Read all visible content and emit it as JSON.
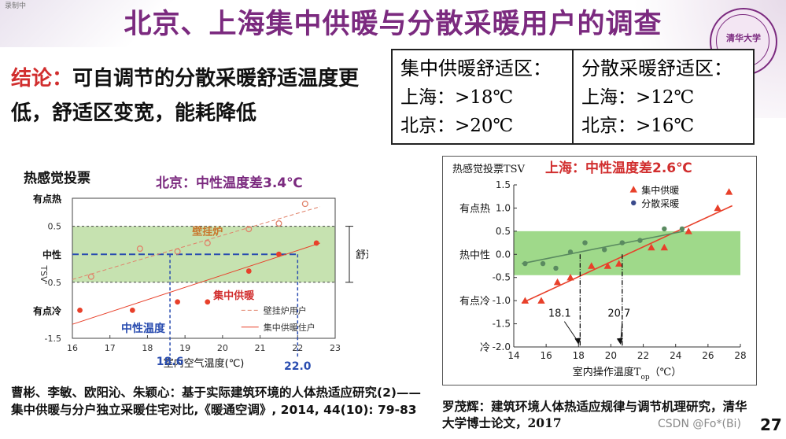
{
  "header": {
    "corner_label": "录制中",
    "title": "北京、上海集中供暖与分散采暖用户的调查",
    "seal_text": "清华大学"
  },
  "conclusion": {
    "lead": "结论：",
    "text": "可自调节的分散采暖舒适温度更低，舒适区变宽，能耗降低"
  },
  "comfort_zones": [
    {
      "heading": "集中供暖舒适区：",
      "rows": [
        "上海：>18℃",
        "北京：>20℃"
      ]
    },
    {
      "heading": "分散采暖舒适区：",
      "rows": [
        "上海：>12℃",
        "北京：>16℃"
      ]
    }
  ],
  "chart_data": [
    {
      "type": "scatter",
      "title": "北京：中性温度差3.4℃",
      "panel_label": "热感觉投票",
      "xlabel": "室内空气温度(℃)",
      "ylabel": "TSV",
      "xlim": [
        16,
        23
      ],
      "ylim": [
        -1.5,
        1.0
      ],
      "x_ticks": [
        "16",
        "17",
        "18",
        "19",
        "20",
        "21",
        "22",
        "23"
      ],
      "y_ticks": [
        {
          "v": 0.5,
          "label": "0.5"
        },
        {
          "v": -0.5,
          "label": "-0.5"
        },
        {
          "v": -1.5,
          "label": "-1.5"
        }
      ],
      "y_text_ticks": [
        {
          "v": 1.0,
          "label": "有点热"
        },
        {
          "v": 0.0,
          "label": "中性"
        },
        {
          "v": -1.0,
          "label": "有点冷"
        }
      ],
      "comfort_band": [
        -0.5,
        0.5
      ],
      "comfort_label": "舒适区",
      "neutral_markers": [
        {
          "x": 18.6,
          "label": "18.6",
          "name": "中性温度"
        },
        {
          "x": 22.0,
          "label": "22.0"
        }
      ],
      "series": [
        {
          "name": "壁挂炉用户",
          "inline_label": "壁挂炉",
          "marker": "open-circle",
          "color": "#e0826a",
          "points": [
            [
              16.5,
              -0.4
            ],
            [
              17.8,
              0.1
            ],
            [
              18.8,
              0.05
            ],
            [
              19.6,
              0.2
            ],
            [
              20.7,
              0.45
            ],
            [
              21.5,
              0.55
            ],
            [
              22.2,
              0.9
            ]
          ],
          "fit": [
            [
              16.0,
              -0.45
            ],
            [
              22.6,
              0.85
            ]
          ]
        },
        {
          "name": "集中供暖住户",
          "inline_label": "集中供暖",
          "marker": "filled-circle",
          "color": "#e8402a",
          "points": [
            [
              16.2,
              -1.0
            ],
            [
              17.6,
              -1.0
            ],
            [
              18.8,
              -0.85
            ],
            [
              19.6,
              -0.85
            ],
            [
              20.7,
              -0.3
            ],
            [
              21.5,
              0.0
            ],
            [
              22.5,
              0.2
            ]
          ],
          "fit": [
            [
              16.0,
              -1.25
            ],
            [
              22.6,
              0.2
            ]
          ]
        }
      ]
    },
    {
      "type": "scatter",
      "title": "上海：中性温度差2.6℃",
      "panel_label": "热感觉投票TSV",
      "xlabel": "室内操作温度T",
      "xlabel_sub": "op",
      "xlabel_unit": "（℃）",
      "xlim": [
        14,
        28
      ],
      "ylim": [
        -2.0,
        1.5
      ],
      "x_ticks": [
        "14",
        "16",
        "18",
        "20",
        "22",
        "24",
        "26",
        "28"
      ],
      "y_ticks": [
        {
          "v": 1.5,
          "label": "1.5"
        },
        {
          "v": 1.0,
          "label": "1.0"
        },
        {
          "v": 0.5,
          "label": "0.5"
        },
        {
          "v": 0.0,
          "label": "0.0"
        },
        {
          "v": -0.5,
          "label": "-0.5"
        },
        {
          "v": -1.0,
          "label": "-1.0"
        },
        {
          "v": -1.5,
          "label": "-1.5"
        },
        {
          "v": -2.0,
          "label": "-2.0"
        }
      ],
      "y_text_ticks": [
        {
          "v": 1.0,
          "label": "有点热"
        },
        {
          "v": 0.0,
          "label": "热中性"
        },
        {
          "v": -1.0,
          "label": "有点冷"
        },
        {
          "v": -2.0,
          "label": "冷"
        }
      ],
      "comfort_band": [
        -0.45,
        0.5
      ],
      "neutral_markers": [
        {
          "x": 18.1,
          "label": "18.1"
        },
        {
          "x": 20.7,
          "label": "20.7"
        }
      ],
      "legend_position": "top-right",
      "series": [
        {
          "name": "集中供暖",
          "marker": "triangle",
          "color": "#e8402a",
          "points": [
            [
              14.7,
              -1.0
            ],
            [
              15.7,
              -1.0
            ],
            [
              16.7,
              -0.6
            ],
            [
              17.5,
              -0.5
            ],
            [
              18.8,
              -0.25
            ],
            [
              19.8,
              -0.25
            ],
            [
              20.5,
              -0.2
            ],
            [
              22.5,
              0.15
            ],
            [
              23.3,
              0.15
            ],
            [
              24.8,
              0.5
            ],
            [
              26.6,
              1.0
            ],
            [
              27.3,
              1.35
            ]
          ],
          "fit": [
            [
              14.5,
              -1.05
            ],
            [
              27.5,
              1.05
            ]
          ]
        },
        {
          "name": "分散采暖",
          "marker": "filled-circle",
          "color": "#5a8a60",
          "points": [
            [
              14.7,
              -0.2
            ],
            [
              15.8,
              -0.2
            ],
            [
              16.6,
              -0.3
            ],
            [
              17.5,
              0.05
            ],
            [
              18.4,
              0.25
            ],
            [
              19.6,
              0.1
            ],
            [
              20.7,
              0.25
            ],
            [
              21.8,
              0.3
            ],
            [
              23.3,
              0.55
            ],
            [
              24.4,
              0.55
            ]
          ],
          "fit": [
            [
              14.5,
              -0.2
            ],
            [
              24.5,
              0.5
            ]
          ],
          "legend_color": "#3a4a8c"
        }
      ]
    }
  ],
  "references": {
    "left": "曹彬、李敏、欧阳沁、朱颖心：基于实际建筑环境的人体热适应研究(2)——集中供暖与分户独立采暖住宅对比,《暖通空调》, 2014, 44(10): 79-83",
    "right": "罗茂辉：建筑环境人体热适应规律与调节机理研究，清华大学博士论文，2017"
  },
  "footer": {
    "page_number": "27",
    "credit": "CSDN @Fo*(Bi)"
  }
}
